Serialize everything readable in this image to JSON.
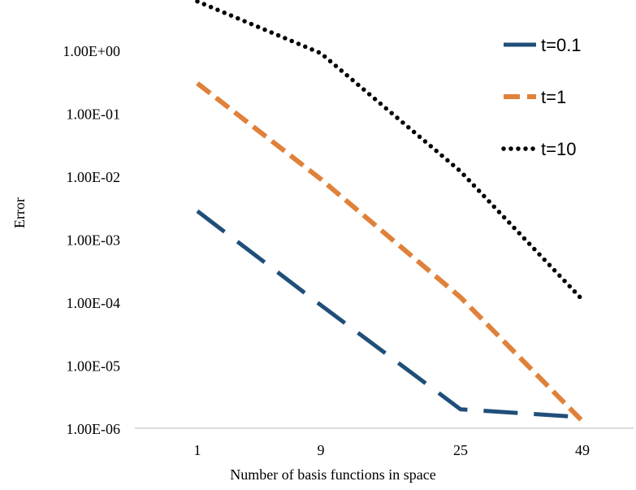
{
  "chart_data": {
    "type": "line",
    "x_categories": [
      "1",
      "9",
      "25",
      "49"
    ],
    "xlabel": "Number of basis functions in space",
    "ylabel": "Error",
    "yscale": "log",
    "ylim": [
      1e-06,
      10
    ],
    "y_tick_labels": [
      "1.00E-06",
      "1.00E-05",
      "1.00E-04",
      "1.00E-03",
      "1.00E-02",
      "1.00E-01",
      "1.00E+00"
    ],
    "grid": false,
    "legend_position": "top-right",
    "series": [
      {
        "name": "t=0.1",
        "color": "#1f4e79",
        "dash": "long-dash",
        "values": [
          0.0028,
          9e-05,
          2e-06,
          1.5e-06
        ]
      },
      {
        "name": "t=1",
        "color": "#e0813a",
        "dash": "dash",
        "values": [
          0.3,
          0.009,
          0.00012,
          1.3e-06
        ]
      },
      {
        "name": "t=10",
        "color": "#000000",
        "dash": "dot",
        "values": [
          6.0,
          0.9,
          0.012,
          0.00011
        ]
      }
    ]
  }
}
